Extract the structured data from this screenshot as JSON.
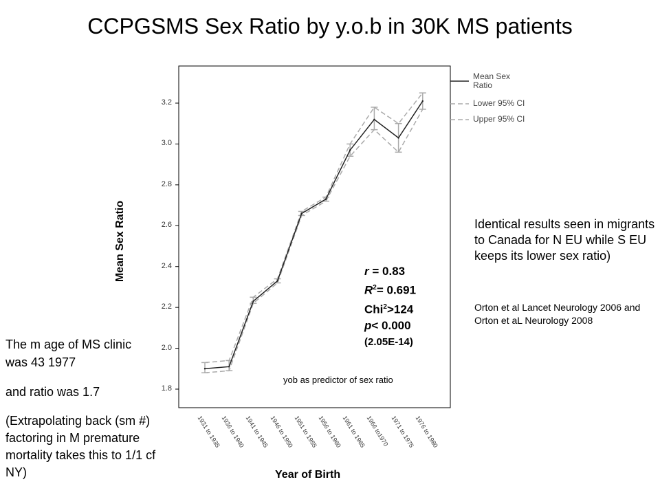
{
  "slide": {
    "title": "CCPGSMS Sex Ratio by y.o.b in 30K MS patients",
    "stats": {
      "r": "= 0.83",
      "r2": "= 0.691",
      "chi": ">124",
      "p": "< 0.000",
      "p_exact": "(2.05E-14)"
    },
    "predictor_note": "yob as predictor of sex ratio",
    "right_text": "Identical results seen in migrants to Canada for N EU while S EU keeps its lower sex ratio)",
    "right_ref": "Orton et al Lancet Neurology 2006 and Orton et aL Neurology 2008",
    "left_lines": [
      "The m age of MS clinic was 43 1977",
      "and ratio was 1.7",
      "(Extrapolating back (sm #) factoring in M premature mortality takes this to 1/1 cf NY)"
    ],
    "colors": {
      "mean_line": "#222222",
      "ci_line": "#aaaaaa",
      "frame": "#000000"
    }
  },
  "chart_data": {
    "type": "line",
    "title": "",
    "xlabel": "Year of Birth",
    "ylabel": "Mean Sex Ratio",
    "categories": [
      "1931 to 1935",
      "1936 to 1940",
      "1941 to 1945",
      "1946 to 1950",
      "1951 to 1955",
      "1956 to 1960",
      "1961 to 1965",
      "1966 to1970",
      "1971 to 1975",
      "1976 to 1980"
    ],
    "series": [
      {
        "name": "Mean Sex Ratio",
        "values": [
          1.9,
          1.91,
          2.23,
          2.33,
          2.66,
          2.73,
          2.97,
          3.12,
          3.03,
          3.21
        ]
      },
      {
        "name": "Lower 95% CI",
        "values": [
          1.88,
          1.89,
          2.22,
          2.32,
          2.65,
          2.72,
          2.94,
          3.07,
          2.96,
          3.17
        ]
      },
      {
        "name": "Upper 95% CI",
        "values": [
          1.93,
          1.94,
          2.25,
          2.34,
          2.67,
          2.74,
          3.0,
          3.18,
          3.1,
          3.25
        ]
      }
    ],
    "yticks": [
      "1.8",
      "2.0",
      "2.2",
      "2.4",
      "2.6",
      "2.8",
      "3.0",
      "3.2"
    ],
    "ylim": [
      1.75,
      3.35
    ],
    "legend_position": "right-top",
    "grid": false
  }
}
